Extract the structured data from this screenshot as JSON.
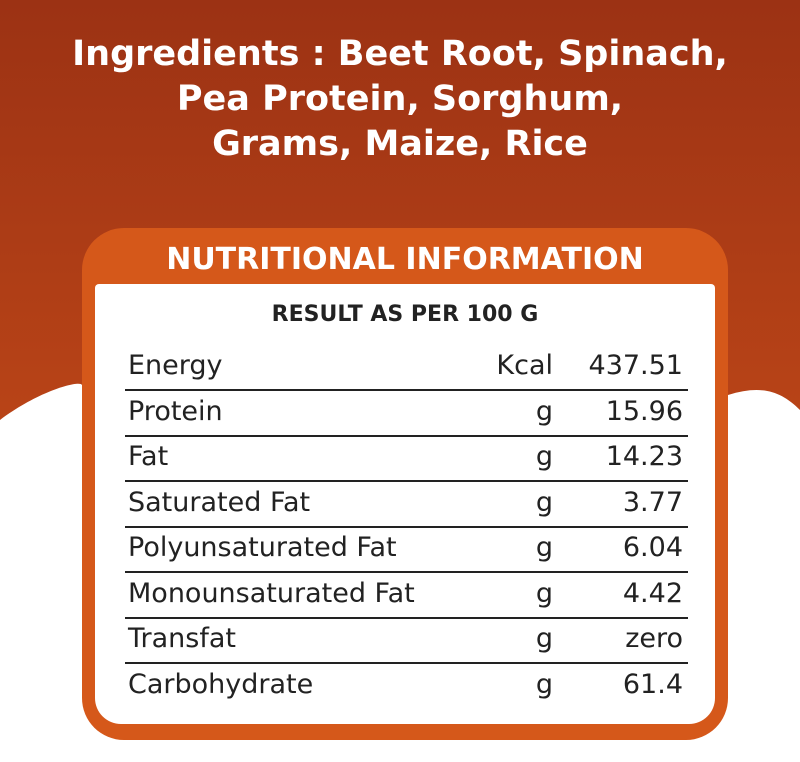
{
  "ingredients": {
    "lines": [
      "Ingredients : Beet Root, Spinach,",
      "Pea Protein, Sorghum,",
      "Grams, Maize, Rice"
    ]
  },
  "nutrition": {
    "title": "NUTRITIONAL INFORMATION",
    "subtitle": "RESULT AS PER 100 G",
    "rows": [
      [
        "Energy",
        "Kcal",
        "437.51"
      ],
      [
        "Protein",
        "g",
        "15.96"
      ],
      [
        "Fat",
        "g",
        "14.23"
      ],
      [
        "Saturated Fat",
        "g",
        "3.77"
      ],
      [
        "Polyunsaturated Fat",
        "g",
        "6.04"
      ],
      [
        "Monounsaturated Fat",
        "g",
        "4.42"
      ],
      [
        "Transfat",
        "g",
        "zero"
      ],
      [
        "Carbohydrate",
        "g",
        "61.4"
      ]
    ]
  }
}
